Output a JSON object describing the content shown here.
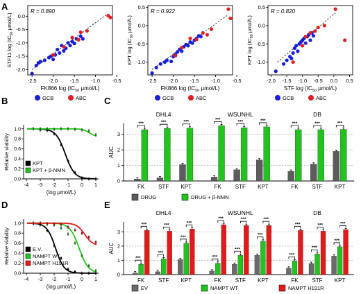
{
  "colors": {
    "gcb": "#1a1fd6",
    "abc": "#e02020",
    "drug": "#5c5c5c",
    "rescue": "#22c31e",
    "ev": "#6a6a6a",
    "wt": "#22c31e",
    "h191r": "#e31a1a",
    "black": "#000000"
  },
  "chart_data": [
    {
      "panel": "A",
      "type": "scatter",
      "r_text": "R = 0.890",
      "xlabel": "FK866 log (IC50 μmol/L)",
      "ylabel": "STF11 log (IC50 μmol/L)",
      "xlim": [
        -2.6,
        -0.6
      ],
      "ylim": [
        -2.2,
        0.4
      ],
      "xticks": [
        "-2.5",
        "-2.0",
        "-1.5",
        "-1.0",
        "-0.5"
      ],
      "yticks": [
        "-2.0",
        "-1.5",
        "-1.0",
        "-0.5",
        "0.0"
      ],
      "trend": [
        [
          -2.5,
          -2.0
        ],
        [
          -0.75,
          0.05
        ]
      ],
      "series": [
        {
          "name": "GCB",
          "points": [
            [
              -2.5,
              -2.15
            ],
            [
              -2.4,
              -1.85
            ],
            [
              -2.35,
              -1.75
            ],
            [
              -2.3,
              -1.7
            ],
            [
              -2.2,
              -1.65
            ],
            [
              -2.1,
              -1.55
            ],
            [
              -2.05,
              -1.5
            ],
            [
              -2.0,
              -1.62
            ],
            [
              -1.95,
              -1.45
            ],
            [
              -1.9,
              -1.25
            ],
            [
              -1.85,
              -1.38
            ],
            [
              -1.8,
              -1.1
            ],
            [
              -1.75,
              -1.3
            ],
            [
              -1.7,
              -1.2
            ],
            [
              -1.65,
              -1.0
            ],
            [
              -1.6,
              -1.1
            ],
            [
              -1.55,
              -0.95
            ],
            [
              -1.5,
              -1.02
            ],
            [
              -1.45,
              -0.85
            ],
            [
              -1.35,
              -0.75
            ],
            [
              -1.3,
              -0.85
            ]
          ]
        },
        {
          "name": "ABC",
          "points": [
            [
              -2.0,
              -1.45
            ],
            [
              -1.75,
              -1.15
            ],
            [
              -1.55,
              -0.8
            ],
            [
              -1.4,
              -0.88
            ],
            [
              -1.35,
              -0.6
            ],
            [
              -1.2,
              -0.55
            ],
            [
              -0.7,
              0.02
            ],
            [
              -0.65,
              -0.05
            ]
          ]
        }
      ]
    },
    {
      "panel": "A",
      "type": "scatter",
      "r_text": "R = 0.922",
      "xlabel": "FK866 log (IC50 μmol/L)",
      "ylabel": "KPT log (IC50 μmol/L)",
      "xlim": [
        -2.6,
        -0.6
      ],
      "ylim": [
        -1.35,
        0.55
      ],
      "xticks": [
        "-2.5",
        "-2.0",
        "-1.5",
        "-1.0",
        "-0.5"
      ],
      "yticks": [
        "-1.0",
        "-0.5",
        "0.0",
        "0.5"
      ],
      "trend": [
        [
          -2.5,
          -1.2
        ],
        [
          -0.7,
          0.3
        ]
      ],
      "series": [
        {
          "name": "GCB",
          "points": [
            [
              -2.5,
              -1.3
            ],
            [
              -2.4,
              -1.15
            ],
            [
              -2.3,
              -1.05
            ],
            [
              -2.2,
              -1.0
            ],
            [
              -2.15,
              -0.95
            ],
            [
              -2.05,
              -0.98
            ],
            [
              -2.0,
              -0.85
            ],
            [
              -1.95,
              -0.78
            ],
            [
              -1.9,
              -0.72
            ],
            [
              -1.85,
              -0.65
            ],
            [
              -1.8,
              -0.7
            ],
            [
              -1.75,
              -0.58
            ],
            [
              -1.7,
              -0.52
            ],
            [
              -1.65,
              -0.55
            ],
            [
              -1.6,
              -0.45
            ],
            [
              -1.55,
              -0.48
            ],
            [
              -1.5,
              -0.4
            ],
            [
              -1.45,
              -0.35
            ],
            [
              -1.4,
              -0.28
            ],
            [
              -1.35,
              -0.3
            ]
          ]
        },
        {
          "name": "ABC",
          "points": [
            [
              -1.95,
              -0.82
            ],
            [
              -1.8,
              -0.6
            ],
            [
              -1.6,
              -0.35
            ],
            [
              -1.45,
              -0.38
            ],
            [
              -1.3,
              -0.2
            ],
            [
              -1.2,
              -0.25
            ],
            [
              -1.1,
              -0.1
            ],
            [
              -0.7,
              0.45
            ],
            [
              -0.65,
              0.2
            ]
          ]
        }
      ]
    },
    {
      "panel": "A",
      "type": "scatter",
      "r_text": "R = 0.820",
      "xlabel": "STF log (IC50 μmol/L)",
      "ylabel": "KPT log (IC50 μmol/L)",
      "xlim": [
        -2.1,
        0.6
      ],
      "ylim": [
        -1.35,
        0.55
      ],
      "xticks": [
        "-2.0",
        "-1.5",
        "-1.0",
        "-0.5",
        "0.0",
        "0.5"
      ],
      "yticks": [
        "-1.0",
        "-0.5",
        "0.0",
        "0.5"
      ],
      "trend": [
        [
          -1.8,
          -1.0
        ],
        [
          0.05,
          0.35
        ]
      ],
      "series": [
        {
          "name": "GCB",
          "points": [
            [
              -1.85,
              -1.25
            ],
            [
              -1.6,
              -1.05
            ],
            [
              -1.5,
              -0.95
            ],
            [
              -1.4,
              -0.85
            ],
            [
              -1.35,
              -0.9
            ],
            [
              -1.3,
              -0.75
            ],
            [
              -1.25,
              -0.62
            ],
            [
              -1.2,
              -0.55
            ],
            [
              -1.15,
              -0.7
            ],
            [
              -1.1,
              -0.5
            ],
            [
              -1.05,
              -0.45
            ],
            [
              -1.0,
              -0.4
            ],
            [
              -0.95,
              -0.35
            ],
            [
              -0.9,
              -0.48
            ],
            [
              -0.85,
              -0.3
            ],
            [
              -0.8,
              -0.25
            ],
            [
              -0.75,
              -0.4
            ],
            [
              -0.7,
              -0.2
            ],
            [
              -0.65,
              -0.28
            ]
          ]
        },
        {
          "name": "ABC",
          "points": [
            [
              -1.3,
              -1.0
            ],
            [
              -1.0,
              -0.55
            ],
            [
              -0.9,
              -0.3
            ],
            [
              -0.75,
              -0.2
            ],
            [
              -0.6,
              -0.15
            ],
            [
              -0.5,
              -0.05
            ],
            [
              -0.3,
              0.0
            ],
            [
              0.05,
              0.45
            ],
            [
              0.35,
              -0.4
            ]
          ]
        }
      ]
    },
    {
      "panel": "B",
      "type": "line",
      "xlabel": "(log μmol/L)",
      "ylabel": "Relative viability",
      "xlim": [
        -4.2,
        1.2
      ],
      "ylim": [
        0,
        1.08
      ],
      "xticks": [
        -4,
        -3,
        -2,
        -1,
        0,
        1
      ],
      "yticks": [
        "0.0",
        "0.2",
        "0.4",
        "0.6",
        "0.8",
        "1.0"
      ],
      "series": [
        {
          "name": "KPT",
          "curve": {
            "top": 1.0,
            "bottom": 0.0,
            "ic50": -1.2,
            "hill": 1.3
          },
          "points": [
            [
              -3.5,
              1.0
            ],
            [
              -3.0,
              0.98
            ],
            [
              -2.5,
              0.97
            ],
            [
              -2.0,
              0.9
            ],
            [
              -1.5,
              0.68
            ],
            [
              -1.0,
              0.36
            ],
            [
              -0.5,
              0.13
            ],
            [
              0.0,
              0.02
            ],
            [
              0.5,
              0.0
            ],
            [
              1.0,
              0.0
            ]
          ]
        },
        {
          "name": "KPT + β-NMN",
          "curve": {
            "top": 1.0,
            "bottom": 0.85,
            "ic50": 0.5,
            "hill": 2.0
          },
          "points": [
            [
              -3.5,
              1.0
            ],
            [
              -3.0,
              1.0
            ],
            [
              -2.5,
              1.0
            ],
            [
              -2.0,
              0.99
            ],
            [
              -1.5,
              1.0
            ],
            [
              -1.0,
              1.0
            ],
            [
              -0.5,
              0.99
            ],
            [
              0.0,
              0.98
            ],
            [
              0.5,
              0.96
            ],
            [
              1.0,
              0.88
            ]
          ]
        }
      ]
    },
    {
      "panel": "C",
      "type": "bar",
      "ylabel": "AUC",
      "ylim": [
        0,
        3.7
      ],
      "yticks": [
        0,
        1,
        2,
        3
      ],
      "group_titles": [
        "DHL4",
        "WSUNHL",
        "DB"
      ],
      "categories": [
        "FK",
        "STF",
        "KPT"
      ],
      "series": [
        {
          "name": "DRUG",
          "values": [
            [
              0.12,
              0.2,
              1.05
            ],
            [
              0.25,
              0.72,
              1.35
            ],
            [
              0.62,
              1.08,
              1.9
            ]
          ]
        },
        {
          "name": "DRUG + β-NMN",
          "values": [
            [
              3.3,
              3.38,
              3.4
            ],
            [
              3.55,
              3.42,
              3.48
            ],
            [
              3.3,
              3.3,
              3.32
            ]
          ]
        }
      ],
      "significance": "***"
    },
    {
      "panel": "D",
      "type": "line",
      "xlabel": "(log μmol/L)",
      "ylabel": "Relative viability",
      "xlim": [
        -4.2,
        1.2
      ],
      "ylim": [
        0,
        1.08
      ],
      "xticks": [
        -4,
        -3,
        -2,
        -1,
        0,
        1
      ],
      "yticks": [
        "0.0",
        "0.2",
        "0.4",
        "0.6",
        "0.8",
        "1.0"
      ],
      "series": [
        {
          "name": "E.V.",
          "curve": {
            "top": 1.0,
            "bottom": 0.0,
            "ic50": -1.9,
            "hill": 1.4
          },
          "points": [
            [
              -3.5,
              0.99
            ],
            [
              -3.0,
              0.97
            ],
            [
              -2.5,
              0.85
            ],
            [
              -2.0,
              0.55
            ],
            [
              -1.5,
              0.3
            ],
            [
              -1.0,
              0.08
            ],
            [
              -0.5,
              0.03
            ],
            [
              0.0,
              0.0
            ],
            [
              0.5,
              0.0
            ],
            [
              1.0,
              0.0
            ]
          ]
        },
        {
          "name": "NAMPT WT",
          "curve": {
            "top": 1.0,
            "bottom": 0.0,
            "ic50": -0.2,
            "hill": 1.3
          },
          "points": [
            [
              -3.5,
              1.0
            ],
            [
              -3.0,
              1.0
            ],
            [
              -2.5,
              0.98
            ],
            [
              -2.0,
              0.96
            ],
            [
              -1.5,
              0.9
            ],
            [
              -1.0,
              0.78
            ],
            [
              -0.5,
              0.6
            ],
            [
              0.0,
              0.35
            ],
            [
              0.5,
              0.15
            ],
            [
              1.0,
              0.05
            ]
          ]
        },
        {
          "name": "NAMPT H191R",
          "curve": {
            "top": 1.0,
            "bottom": 0.55,
            "ic50": 0.2,
            "hill": 1.5
          },
          "points": [
            [
              -3.5,
              1.0
            ],
            [
              -3.0,
              1.0
            ],
            [
              -2.5,
              0.99
            ],
            [
              -2.0,
              0.98
            ],
            [
              -1.5,
              0.97
            ],
            [
              -1.0,
              0.92
            ],
            [
              -0.5,
              0.86
            ],
            [
              0.0,
              0.8
            ],
            [
              0.5,
              0.72
            ],
            [
              1.0,
              0.62
            ]
          ]
        }
      ]
    },
    {
      "panel": "E",
      "type": "bar",
      "ylabel": "AUC",
      "ylim": [
        0,
        3.7
      ],
      "yticks": [
        0,
        1,
        2,
        3
      ],
      "group_titles": [
        "DHL4",
        "WSUNHL",
        "DB"
      ],
      "categories": [
        "FK",
        "STF",
        "KPT"
      ],
      "series": [
        {
          "name": "EV",
          "values": [
            [
              0.12,
              0.2,
              1.05
            ],
            [
              0.25,
              0.72,
              1.35
            ],
            [
              0.45,
              0.78,
              1.3
            ]
          ]
        },
        {
          "name": "NAMPT WT",
          "values": [
            [
              0.72,
              1.1,
              2.2
            ],
            [
              0.8,
              1.35,
              2.35
            ],
            [
              0.95,
              1.45,
              1.95
            ]
          ]
        },
        {
          "name": "NAMPT H191R",
          "values": [
            [
              3.1,
              3.05,
              3.2
            ],
            [
              3.5,
              3.45,
              3.45
            ],
            [
              3.1,
              3.05,
              3.15
            ]
          ]
        }
      ],
      "significance": "***"
    }
  ],
  "panel_labels": {
    "A": "A",
    "B": "B",
    "C": "C",
    "D": "D",
    "E": "E"
  },
  "legend_a": {
    "gcb": "GCB",
    "abc": "ABC"
  }
}
